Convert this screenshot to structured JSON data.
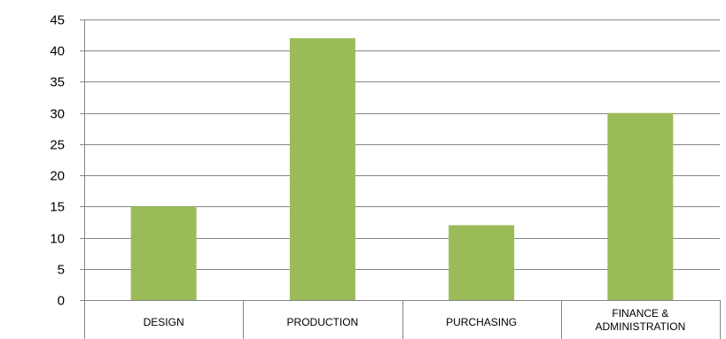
{
  "chart_data": {
    "type": "bar",
    "categories": [
      [
        "DESIGN"
      ],
      [
        "PRODUCTION"
      ],
      [
        "PURCHASING"
      ],
      [
        "FINANCE &",
        "ADMINISTRATION"
      ]
    ],
    "values": [
      15,
      42,
      12,
      30
    ],
    "ylim": [
      0,
      45
    ],
    "yticks": [
      0,
      5,
      10,
      15,
      20,
      25,
      30,
      35,
      40,
      45
    ],
    "grid": true,
    "bar_color": "#9BBB59",
    "gridline_color": "#868686",
    "title": "",
    "xlabel": "",
    "ylabel": ""
  }
}
